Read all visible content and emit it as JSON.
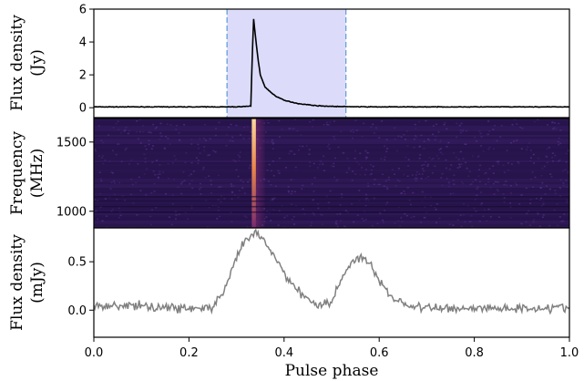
{
  "chart_data": [
    {
      "type": "line",
      "panel": "top",
      "ylabel": [
        "Flux density",
        "(Jy)"
      ],
      "xlim": [
        0.0,
        1.0
      ],
      "ylim": [
        -0.6,
        6.0
      ],
      "yticks": [
        0,
        2,
        4,
        6
      ],
      "ytick_labels": [
        "0",
        "2",
        "4",
        "6"
      ],
      "highlight_region": [
        0.28,
        0.53
      ],
      "colors": {
        "line": "#000000",
        "region_fill": "#dcdcfa",
        "region_edge": "#6a9fd8"
      },
      "series": [
        {
          "x": [
            0.0,
            0.1,
            0.2,
            0.3,
            0.33,
            0.333,
            0.336,
            0.34,
            0.345,
            0.35,
            0.36,
            0.38,
            0.4,
            0.43,
            0.47,
            0.5,
            0.55,
            0.6,
            0.8,
            1.0
          ],
          "values": [
            0.05,
            0.05,
            0.05,
            0.05,
            0.1,
            3.0,
            5.4,
            4.3,
            3.0,
            2.0,
            1.25,
            0.75,
            0.45,
            0.25,
            0.12,
            0.08,
            0.06,
            0.05,
            0.05,
            0.05
          ]
        }
      ]
    },
    {
      "type": "heatmap",
      "panel": "middle",
      "ylabel": [
        "Frequency",
        "(MHz)"
      ],
      "xlim": [
        0.0,
        1.0
      ],
      "ylim": [
        880,
        1670
      ],
      "yticks": [
        1000,
        1500
      ],
      "ytick_labels": [
        "1000",
        "1500"
      ],
      "pulse_phase": 0.335,
      "colors": {
        "background": "#2a1650",
        "pulse_top": "#fcd9a0",
        "pulse_mid": "#e9864a",
        "pulse_low": "#7a2a6e"
      }
    },
    {
      "type": "line",
      "panel": "bottom",
      "ylabel": [
        "Flux density",
        "(mJy)"
      ],
      "xlabel": "Pulse phase",
      "xlim": [
        0.0,
        1.0
      ],
      "ylim": [
        -0.28,
        0.85
      ],
      "yticks": [
        0.0,
        0.5
      ],
      "ytick_labels": [
        "0.0",
        "0.5"
      ],
      "xticks": [
        0.0,
        0.2,
        0.4,
        0.6,
        0.8,
        1.0
      ],
      "xtick_labels": [
        "0.0",
        "0.2",
        "0.4",
        "0.6",
        "0.8",
        "1.0"
      ],
      "colors": {
        "line": "#808080"
      },
      "series": [
        {
          "x": [
            0.0,
            0.05,
            0.1,
            0.15,
            0.2,
            0.25,
            0.28,
            0.3,
            0.32,
            0.34,
            0.36,
            0.38,
            0.4,
            0.43,
            0.46,
            0.48,
            0.5,
            0.52,
            0.54,
            0.56,
            0.58,
            0.6,
            0.63,
            0.66,
            0.7,
            0.8,
            0.9,
            1.0
          ],
          "values": [
            0.05,
            0.05,
            0.04,
            0.03,
            0.02,
            0.02,
            0.25,
            0.55,
            0.72,
            0.8,
            0.7,
            0.55,
            0.38,
            0.2,
            0.08,
            0.05,
            0.1,
            0.3,
            0.5,
            0.55,
            0.48,
            0.3,
            0.12,
            0.05,
            0.02,
            0.02,
            0.02,
            0.03
          ]
        }
      ]
    }
  ]
}
